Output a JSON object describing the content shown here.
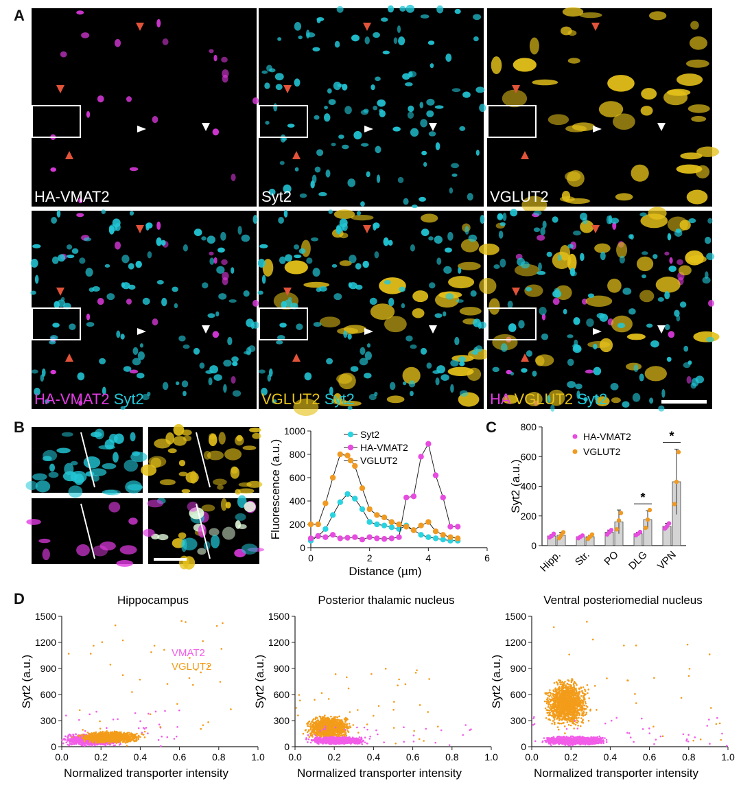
{
  "panels": {
    "A": "A",
    "B": "B",
    "C": "C",
    "D": "D"
  },
  "colors": {
    "magenta": "#e23be3",
    "cyan": "#22c8d8",
    "yellow": "#e6c21a",
    "orange": "#f39c1a",
    "pink": "#f25de8",
    "arrow_red": "#e2533a",
    "arrow_white": "#ffffff"
  },
  "panelA": {
    "row1": [
      "HA-VMAT2",
      "Syt2",
      "VGLUT2"
    ],
    "row2": [
      [
        {
          "t": "HA-VMAT2",
          "c": "magenta"
        },
        {
          "t": " Syt2",
          "c": "cyan"
        }
      ],
      [
        {
          "t": "VGLUT2",
          "c": "yellow"
        },
        {
          "t": " Syt2",
          "c": "cyan"
        }
      ],
      [
        {
          "t": "HA",
          "c": "magenta"
        },
        {
          "t": " VGLUT2",
          "c": "yellow"
        },
        {
          "t": " Syt2",
          "c": "cyan"
        }
      ]
    ]
  },
  "panelB": {
    "chart_data": {
      "type": "line",
      "xlabel": "Distance (µm)",
      "ylabel": "Fluorescence (a.u.)",
      "xlim": [
        0,
        6
      ],
      "ylim": [
        0,
        1000
      ],
      "xticks": [
        0,
        2,
        4,
        6
      ],
      "yticks": [
        0,
        200,
        400,
        600,
        800,
        1000
      ],
      "legend_position": "top-right",
      "series": [
        {
          "name": "Syt2",
          "color": "#2ad3e0",
          "x": [
            0,
            0.25,
            0.5,
            0.75,
            1.0,
            1.25,
            1.5,
            1.75,
            2.0,
            2.25,
            2.5,
            2.75,
            3.0,
            3.25,
            3.5,
            3.75,
            4.0,
            4.25,
            4.5,
            4.75,
            5.0
          ],
          "y": [
            60,
            100,
            160,
            280,
            390,
            460,
            420,
            330,
            220,
            200,
            190,
            175,
            160,
            190,
            150,
            110,
            90,
            80,
            70,
            60,
            60
          ]
        },
        {
          "name": "HA-VMAT2",
          "color": "#e74be0",
          "x": [
            0,
            0.25,
            0.5,
            0.75,
            1.0,
            1.25,
            1.5,
            1.75,
            2.0,
            2.25,
            2.5,
            2.75,
            3.0,
            3.25,
            3.5,
            3.75,
            4.0,
            4.25,
            4.5,
            4.75,
            5.0
          ],
          "y": [
            80,
            100,
            90,
            110,
            80,
            85,
            90,
            70,
            90,
            80,
            75,
            80,
            90,
            430,
            440,
            780,
            890,
            620,
            430,
            180,
            180
          ]
        },
        {
          "name": "VGLUT2",
          "color": "#f09a22",
          "x": [
            0,
            0.25,
            0.5,
            0.75,
            1.0,
            1.25,
            1.5,
            1.75,
            2.0,
            2.25,
            2.5,
            2.75,
            3.0,
            3.25,
            3.5,
            3.75,
            4.0,
            4.25,
            4.5,
            4.75,
            5.0
          ],
          "y": [
            200,
            200,
            380,
            600,
            800,
            790,
            700,
            510,
            330,
            280,
            260,
            220,
            200,
            180,
            150,
            190,
            220,
            140,
            110,
            90,
            80
          ]
        }
      ]
    }
  },
  "panelC": {
    "chart_data": {
      "type": "bar",
      "ylabel": "Syt2 (a.u.)",
      "ylim": [
        0,
        800
      ],
      "yticks": [
        0,
        200,
        400,
        600,
        800
      ],
      "categories": [
        "Hipp.",
        "Str.",
        "PO",
        "DLG",
        "VPN"
      ],
      "legend_position": "top-left",
      "series": [
        {
          "name": "HA-VMAT2",
          "color": "#e84be0",
          "values": [
            65,
            60,
            90,
            80,
            130
          ],
          "errors": [
            10,
            5,
            15,
            10,
            20
          ],
          "points": [
            [
              55,
              65,
              80
            ],
            [
              50,
              60,
              68
            ],
            [
              75,
              90,
              105
            ],
            [
              70,
              80,
              92
            ],
            [
              115,
              130,
              150
            ]
          ]
        },
        {
          "name": "VGLUT2",
          "color": "#f09a22",
          "values": [
            70,
            60,
            160,
            175,
            430
          ],
          "errors": [
            20,
            10,
            80,
            60,
            220
          ],
          "points": [
            [
              50,
              70,
              90
            ],
            [
              45,
              60,
              75
            ],
            [
              110,
              170,
              220
            ],
            [
              120,
              175,
              240
            ],
            [
              280,
              430,
              630
            ]
          ]
        }
      ],
      "significance": [
        "",
        "",
        "",
        "*",
        "*"
      ]
    }
  },
  "panelD": {
    "chart_data": [
      {
        "type": "scatter",
        "title": "Hippocampus",
        "xlabel": "Normalized transporter intensity",
        "ylabel": "Syt2 (a.u.)",
        "xlim": [
          0,
          1.0
        ],
        "ylim": [
          0,
          1500
        ],
        "xticks": [
          "0.0",
          "0.2",
          "0.4",
          "0.6",
          "0.8",
          "1.0"
        ],
        "yticks": [
          "0",
          "300",
          "600",
          "900",
          "1200",
          "1500"
        ],
        "series": [
          {
            "name": "VMAT2",
            "color": "#f25de8",
            "cluster": {
              "x_center": 0.15,
              "x_spread": 0.12,
              "y_center": 80,
              "y_spread": 60,
              "x_max": 0.62,
              "y_max": 420
            }
          },
          {
            "name": "VGLUT2",
            "color": "#f39c1a",
            "cluster": {
              "x_center": 0.25,
              "x_spread": 0.14,
              "y_center": 110,
              "y_spread": 60,
              "x_max": 0.9,
              "y_max": 1450
            }
          }
        ]
      },
      {
        "type": "scatter",
        "title": "Posterior thalamic nucleus",
        "xlabel": "Normalized transporter intensity",
        "ylabel": "Syt2 (a.u.)",
        "xlim": [
          0,
          1.0
        ],
        "ylim": [
          0,
          1500
        ],
        "xticks": [
          "0.0",
          "0.2",
          "0.4",
          "0.6",
          "0.8",
          "1.0"
        ],
        "yticks": [
          "0",
          "300",
          "600",
          "900",
          "1200",
          "1500"
        ],
        "series": [
          {
            "name": "VGLUT2",
            "color": "#f39c1a",
            "cluster": {
              "x_center": 0.17,
              "x_spread": 0.1,
              "y_center": 220,
              "y_spread": 120,
              "x_max": 0.75,
              "y_max": 900
            }
          },
          {
            "name": "VMAT2",
            "color": "#f25de8",
            "cluster": {
              "x_center": 0.22,
              "x_spread": 0.12,
              "y_center": 70,
              "y_spread": 40,
              "x_max": 0.9,
              "y_max": 250
            }
          }
        ]
      },
      {
        "type": "scatter",
        "title": "Ventral posteriomedial nucleus",
        "xlabel": "Normalized transporter intensity",
        "ylabel": "Syt2 (a.u.)",
        "xlim": [
          0,
          1.0
        ],
        "ylim": [
          0,
          1500
        ],
        "xticks": [
          "0.0",
          "0.2",
          "0.4",
          "0.6",
          "0.8",
          "1.0"
        ],
        "yticks": [
          "0",
          "300",
          "600",
          "900",
          "1200",
          "1500"
        ],
        "series": [
          {
            "name": "VGLUT2",
            "color": "#f39c1a",
            "cluster": {
              "x_center": 0.18,
              "x_spread": 0.1,
              "y_center": 500,
              "y_spread": 250,
              "x_max": 1.0,
              "y_max": 1480
            }
          },
          {
            "name": "VMAT2",
            "color": "#f25de8",
            "cluster": {
              "x_center": 0.22,
              "x_spread": 0.14,
              "y_center": 70,
              "y_spread": 45,
              "x_max": 1.0,
              "y_max": 350
            }
          }
        ]
      }
    ],
    "legend": [
      "VMAT2",
      "VGLUT2"
    ]
  }
}
